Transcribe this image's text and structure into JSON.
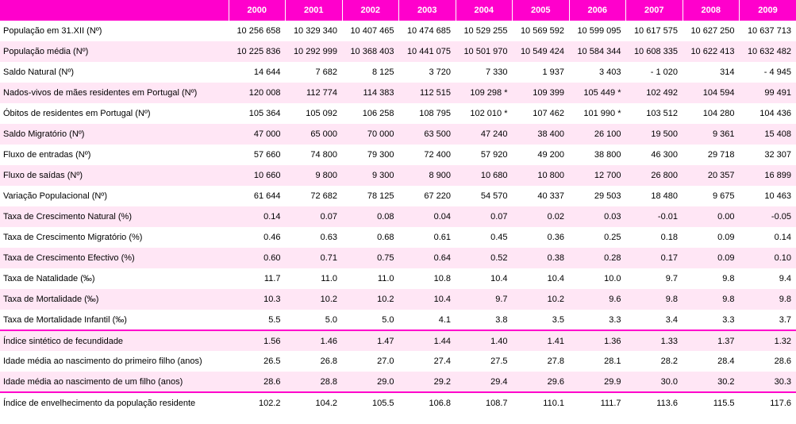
{
  "header_bg": "#ff00cc",
  "stripe_bg": "#ffe6f5",
  "years": [
    "2000",
    "2001",
    "2002",
    "2003",
    "2004",
    "2005",
    "2006",
    "2007",
    "2008",
    "2009"
  ],
  "rows": [
    {
      "label": "População em 31.XII (Nº)",
      "v": [
        "10 256 658",
        "10 329 340",
        "10 407 465",
        "10 474 685",
        "10 529 255",
        "10 569 592",
        "10 599 095",
        "10 617 575",
        "10 627 250",
        "10 637 713"
      ],
      "sep": false
    },
    {
      "label": "População média (Nº)",
      "v": [
        "10 225 836",
        "10 292 999",
        "10 368 403",
        "10 441 075",
        "10 501 970",
        "10 549 424",
        "10 584 344",
        "10 608 335",
        "10 622 413",
        "10 632 482"
      ],
      "sep": false
    },
    {
      "label": "Saldo Natural  (Nº)",
      "v": [
        "14 644",
        "7 682",
        "8 125",
        "3 720",
        "7 330",
        "1 937",
        "3 403",
        "- 1 020",
        "314",
        "- 4 945"
      ],
      "sep": false
    },
    {
      "label": "Nados-vivos de mães residentes em Portugal (Nº)",
      "v": [
        "120 008",
        "112 774",
        "114 383",
        "112 515",
        "109 298 *",
        "109 399",
        "105 449 *",
        "102 492",
        "104 594",
        "99 491"
      ],
      "sep": false
    },
    {
      "label": "Óbitos de residentes em Portugal (Nº)",
      "v": [
        "105 364",
        "105 092",
        "106 258",
        "108 795",
        "102 010 *",
        "107 462",
        "101 990 *",
        "103 512",
        "104 280",
        "104 436"
      ],
      "sep": false
    },
    {
      "label": "Saldo Migratório (Nº)",
      "v": [
        "47 000",
        "65 000",
        "70 000",
        "63 500",
        "47 240",
        "38 400",
        "26 100",
        "19 500",
        "9 361",
        "15 408"
      ],
      "sep": false
    },
    {
      "label": "Fluxo de entradas (Nº)",
      "v": [
        "57 660",
        "74 800",
        "79 300",
        "72 400",
        "57 920",
        "49 200",
        "38 800",
        "46 300",
        "29 718",
        "32 307"
      ],
      "sep": false
    },
    {
      "label": "Fluxo de saídas (Nº)",
      "v": [
        "10 660",
        "9 800",
        "9 300",
        "8 900",
        "10 680",
        "10 800",
        "12 700",
        "26 800",
        "20 357",
        "16 899"
      ],
      "sep": false
    },
    {
      "label": "Variação Populacional (Nº)",
      "v": [
        "61 644",
        "72 682",
        "78 125",
        "67 220",
        "54 570",
        "40 337",
        "29 503",
        "18 480",
        "9 675",
        "10 463"
      ],
      "sep": false
    },
    {
      "label": "Taxa de Crescimento Natural (%)",
      "v": [
        "0.14",
        "0.07",
        "0.08",
        "0.04",
        "0.07",
        "0.02",
        "0.03",
        "-0.01",
        "0.00",
        "-0.05"
      ],
      "sep": false
    },
    {
      "label": "Taxa de Crescimento Migratório (%)",
      "v": [
        "0.46",
        "0.63",
        "0.68",
        "0.61",
        "0.45",
        "0.36",
        "0.25",
        "0.18",
        "0.09",
        "0.14"
      ],
      "sep": false
    },
    {
      "label": "Taxa de Crescimento Efectivo (%)",
      "v": [
        "0.60",
        "0.71",
        "0.75",
        "0.64",
        "0.52",
        "0.38",
        "0.28",
        "0.17",
        "0.09",
        "0.10"
      ],
      "sep": false
    },
    {
      "label": "Taxa de Natalidade (‰)",
      "v": [
        "11.7",
        "11.0",
        "11.0",
        "10.8",
        "10.4",
        "10.4",
        "10.0",
        "9.7",
        "9.8",
        "9.4"
      ],
      "sep": false
    },
    {
      "label": "Taxa de Mortalidade (‰)",
      "v": [
        "10.3",
        "10.2",
        "10.2",
        "10.4",
        "9.7",
        "10.2",
        "9.6",
        "9.8",
        "9.8",
        "9.8"
      ],
      "sep": false
    },
    {
      "label": "Taxa de Mortalidade  Infantil (‰)",
      "v": [
        "5.5",
        "5.0",
        "5.0",
        "4.1",
        "3.8",
        "3.5",
        "3.3",
        "3.4",
        "3.3",
        "3.7"
      ],
      "sep": false
    },
    {
      "label": "Índice sintético de fecundidade",
      "v": [
        "1.56",
        "1.46",
        "1.47",
        "1.44",
        "1.40",
        "1.41",
        "1.36",
        "1.33",
        "1.37",
        "1.32"
      ],
      "sep": true
    },
    {
      "label": "Idade média ao nascimento do primeiro filho (anos)",
      "v": [
        "26.5",
        "26.8",
        "27.0",
        "27.4",
        "27.5",
        "27.8",
        "28.1",
        "28.2",
        "28.4",
        "28.6"
      ],
      "sep": false
    },
    {
      "label": "Idade média ao nascimento de um filho (anos)",
      "v": [
        "28.6",
        "28.8",
        "29.0",
        "29.2",
        "29.4",
        "29.6",
        "29.9",
        "30.0",
        "30.2",
        "30.3"
      ],
      "sep": false
    },
    {
      "label": "Índice de envelhecimento da população residente",
      "v": [
        "102.2",
        "104.2",
        "105.5",
        "106.8",
        "108.7",
        "110.1",
        "111.7",
        "113.6",
        "115.5",
        "117.6"
      ],
      "sep": true
    }
  ]
}
